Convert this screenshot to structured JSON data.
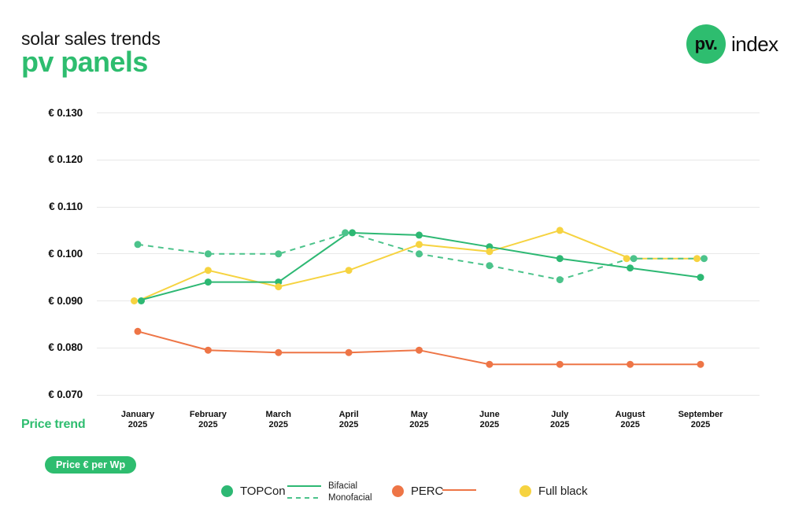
{
  "header": {
    "subtitle": "solar sales trends",
    "title": "pv panels"
  },
  "logo": {
    "circle_text": "pv.",
    "text": "index"
  },
  "footer": {
    "price_trend_label": "Price trend",
    "unit_badge": "Price € per Wp"
  },
  "legend": {
    "topcon": "TOPCon",
    "bifacial": "Bifacial",
    "monofacial": "Monofacial",
    "perc": "PERC",
    "full_black": "Full black"
  },
  "colors": {
    "green": "#2db873",
    "green_light": "#4cc38b",
    "orange": "#ee7546",
    "yellow": "#f6d340",
    "brand_green": "#2ebd6f",
    "grid": "#e8e8e8",
    "text": "#111111"
  },
  "chart_data": {
    "type": "line",
    "title": "Price trend",
    "ylabel": "Price € per Wp",
    "year": "2025",
    "categories": [
      "January",
      "February",
      "March",
      "April",
      "May",
      "June",
      "July",
      "August",
      "September"
    ],
    "ylim": [
      0.07,
      0.13
    ],
    "grid": true,
    "legend_position": "bottom",
    "y_ticks": [
      {
        "value": 0.13,
        "label": "€ 0.130"
      },
      {
        "value": 0.12,
        "label": "€ 0.120"
      },
      {
        "value": 0.11,
        "label": "€ 0.110"
      },
      {
        "value": 0.1,
        "label": "€ 0.100"
      },
      {
        "value": 0.09,
        "label": "€ 0.090"
      },
      {
        "value": 0.08,
        "label": "€ 0.080"
      },
      {
        "value": 0.07,
        "label": "€ 0.070"
      }
    ],
    "series": [
      {
        "id": "perc",
        "name": "PERC",
        "color_key": "orange",
        "dash": false,
        "values": [
          0.0835,
          0.0795,
          0.079,
          0.079,
          0.0795,
          0.0765,
          0.0765,
          0.0765,
          0.0765
        ]
      },
      {
        "id": "full-black",
        "name": "Full black",
        "color_key": "yellow",
        "dash": false,
        "values": [
          0.09,
          0.0965,
          0.093,
          0.0965,
          0.102,
          0.1005,
          0.105,
          0.099,
          0.099
        ]
      },
      {
        "id": "topcon-monofacial",
        "name": "TOPCon Monofacial",
        "color_key": "green_light",
        "dash": true,
        "values": [
          0.102,
          0.1,
          0.1,
          0.1045,
          0.1,
          0.0975,
          0.0945,
          0.099,
          0.099
        ]
      },
      {
        "id": "topcon-bifacial",
        "name": "TOPCon Bifacial",
        "color_key": "green",
        "dash": false,
        "values": [
          0.09,
          0.094,
          0.094,
          0.1045,
          0.104,
          0.1015,
          0.099,
          0.097,
          0.095
        ]
      }
    ]
  }
}
